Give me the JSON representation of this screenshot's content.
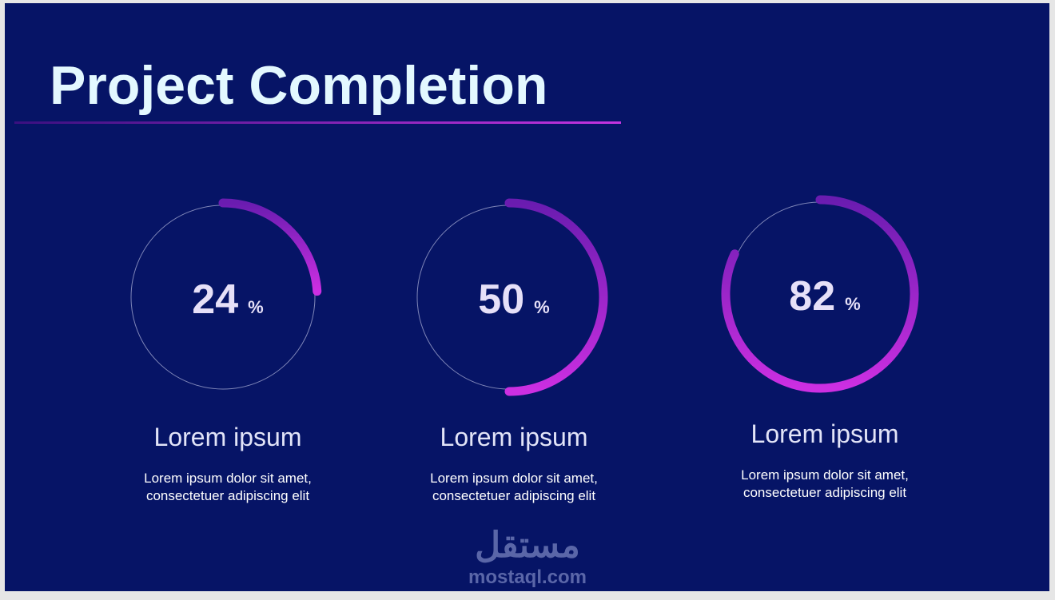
{
  "title": "Project Completion",
  "items": [
    {
      "value": 24,
      "unit": "%",
      "heading": "Lorem ipsum",
      "lines": [
        "Lorem ipsum dolor sit amet,",
        "consectetuer adipiscing elit"
      ]
    },
    {
      "value": 50,
      "unit": "%",
      "heading": "Lorem ipsum",
      "lines": [
        "Lorem ipsum dolor sit amet,",
        "consectetuer adipiscing elit"
      ]
    },
    {
      "value": 82,
      "unit": "%",
      "heading": "Lorem ipsum",
      "lines": [
        "Lorem ipsum dolor sit amet,",
        "consectetuer adipiscing elit"
      ]
    }
  ],
  "watermark": {
    "arabic": "مستقل",
    "latin": "mostaql.com"
  }
}
